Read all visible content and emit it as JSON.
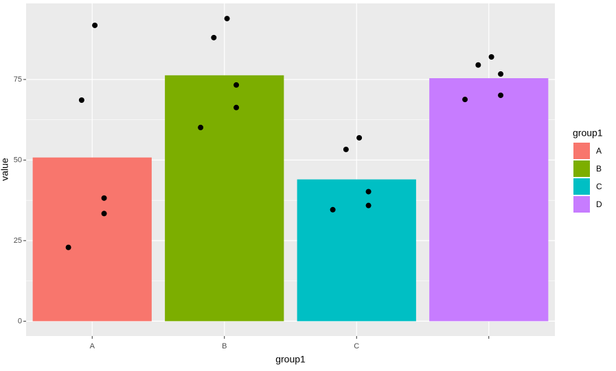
{
  "chart_data": {
    "type": "bar",
    "x_label": "group1",
    "y_label": "value",
    "categories": [
      "A",
      "B",
      "C",
      null
    ],
    "values": [
      50.8,
      76.3,
      44.0,
      75.4
    ],
    "colors": [
      "#f8766d",
      "#7cae00",
      "#00bfc4",
      "#c77cff"
    ],
    "points": [
      [
        91.8,
        68.6,
        38.2,
        33.4,
        22.9
      ],
      [
        93.9,
        88.0,
        73.3,
        66.3,
        60.1
      ],
      [
        56.9,
        53.3,
        40.2,
        35.9,
        34.6
      ],
      [
        82.0,
        79.5,
        76.7,
        70.1,
        68.8
      ]
    ],
    "point_color": "#000000",
    "legend": {
      "title": "group1",
      "labels": [
        "A",
        "B",
        "C",
        "D"
      ],
      "position": "right"
    },
    "ylim": [
      -4.6,
      98.6
    ],
    "yticks": [
      0,
      25,
      50,
      75
    ],
    "grid": true
  }
}
